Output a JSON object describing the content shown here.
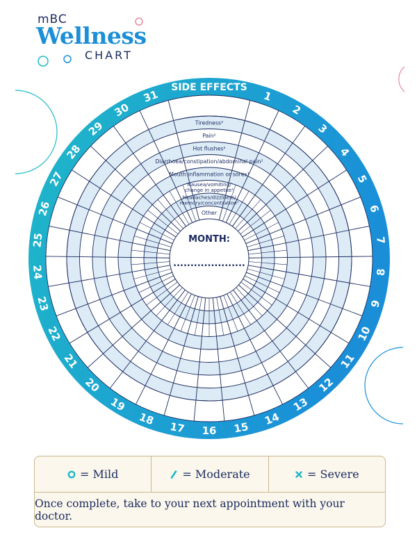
{
  "logo": {
    "prefix": "mBC",
    "main": "Wellness",
    "suffix": "CHART"
  },
  "wheel": {
    "title": "SIDE EFFECTS",
    "month_label": "MONTH:",
    "month_value": ".....................",
    "days": [
      "1",
      "2",
      "3",
      "4",
      "5",
      "6",
      "7",
      "8",
      "9",
      "10",
      "11",
      "12",
      "13",
      "14",
      "15",
      "16",
      "17",
      "18",
      "19",
      "20",
      "21",
      "22",
      "23",
      "24",
      "25",
      "26",
      "27",
      "28",
      "29",
      "30",
      "31"
    ],
    "rings": [
      {
        "lines": [
          "Tiredness²"
        ]
      },
      {
        "lines": [
          "Pain²"
        ]
      },
      {
        "lines": [
          "Hot flushes²"
        ]
      },
      {
        "lines": [
          "Diarrhoea/constipation/abdominal pain²"
        ]
      },
      {
        "lines": [
          "Mouth inflammation or sores¹"
        ]
      },
      {
        "lines": [
          "Nausea/vomiting/",
          "change in appetite¹"
        ]
      },
      {
        "lines": [
          "Headaches/dizziness/",
          "memory/concentration¹"
        ]
      },
      {
        "lines": [
          "Other"
        ]
      }
    ]
  },
  "legend": {
    "items": [
      {
        "symbol": "circle-icon",
        "label": "= Mild"
      },
      {
        "symbol": "slash-icon",
        "label": "= Moderate"
      },
      {
        "symbol": "cross-icon",
        "label": "= Severe"
      }
    ],
    "note": "Once complete, take to your next appointment with your doctor."
  },
  "colors": {
    "ring_blue": "#1a8fd8",
    "ring_teal": "#1fb8c9",
    "band_light": "#dcebf6",
    "line_dark": "#1a2a5e",
    "legend_bg": "#fbf7ec",
    "legend_border": "#c9b88f",
    "mild": "#1fb8c9",
    "moderate": "#1fb8c9",
    "severe": "#1fb8c9",
    "accent_pink": "#e88aa3"
  }
}
